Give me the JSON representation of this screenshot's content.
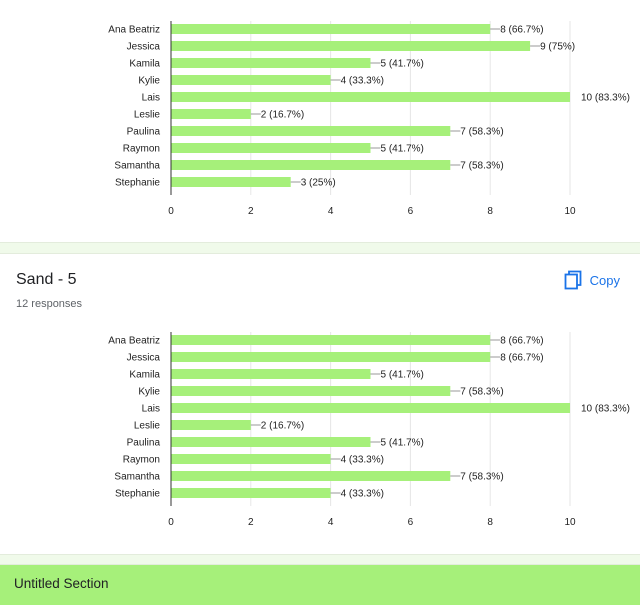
{
  "colors": {
    "bar": "#a6f07a",
    "accent": "#1a73e8",
    "section": "#a6f07a"
  },
  "questions": [
    {
      "title": "",
      "responses": ""
    },
    {
      "title": "Sand - 5",
      "responses": "12 responses",
      "copy_label": "Copy",
      "copy_icon": "copy-icon"
    }
  ],
  "section": {
    "title": "Untitled Section"
  },
  "chart_data": [
    {
      "type": "bar",
      "orientation": "horizontal",
      "categories": [
        "Ana Beatriz",
        "Jessica",
        "Kamila",
        "Kylie",
        "Lais",
        "Leslie",
        "Paulina",
        "Raymon",
        "Samantha",
        "Stephanie"
      ],
      "values": [
        8,
        9,
        5,
        4,
        10,
        2,
        7,
        5,
        7,
        3
      ],
      "data_labels": [
        "8 (66.7%)",
        "9 (75%)",
        "5 (41.7%)",
        "4 (33.3%)",
        "10 (83.3%)",
        "2 (16.7%)",
        "7 (58.3%)",
        "5 (41.7%)",
        "7 (58.3%)",
        "3 (25%)"
      ],
      "xlim": [
        0,
        10
      ],
      "xticks": [
        0,
        2,
        4,
        6,
        8,
        10
      ],
      "grid": true
    },
    {
      "type": "bar",
      "orientation": "horizontal",
      "categories": [
        "Ana Beatriz",
        "Jessica",
        "Kamila",
        "Kylie",
        "Lais",
        "Leslie",
        "Paulina",
        "Raymon",
        "Samantha",
        "Stephanie"
      ],
      "values": [
        8,
        8,
        5,
        7,
        10,
        2,
        5,
        4,
        7,
        4
      ],
      "data_labels": [
        "8 (66.7%)",
        "8 (66.7%)",
        "5 (41.7%)",
        "7 (58.3%)",
        "10 (83.3%)",
        "2 (16.7%)",
        "5 (41.7%)",
        "4 (33.3%)",
        "7 (58.3%)",
        "4 (33.3%)"
      ],
      "xlim": [
        0,
        10
      ],
      "xticks": [
        0,
        2,
        4,
        6,
        8,
        10
      ],
      "grid": true
    }
  ]
}
